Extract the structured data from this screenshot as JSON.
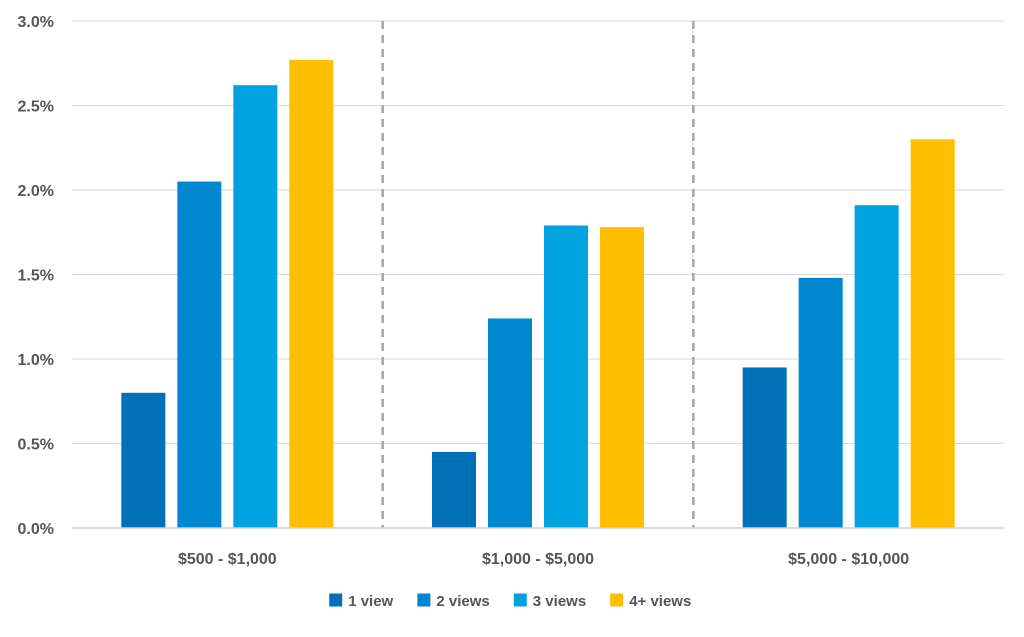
{
  "chart_data": {
    "type": "bar",
    "title": "",
    "xlabel": "",
    "ylabel": "",
    "categories": [
      "$500 - $1,000",
      "$1,000 - $5,000",
      "$5,000 - $10,000"
    ],
    "series": [
      {
        "name": "1 view",
        "color": "#0070b8",
        "values": [
          0.8,
          0.45,
          0.95
        ]
      },
      {
        "name": "2 views",
        "color": "#0087d0",
        "values": [
          2.05,
          1.24,
          1.48
        ]
      },
      {
        "name": "3 views",
        "color": "#00a3e0",
        "values": [
          2.62,
          1.79,
          1.91
        ]
      },
      {
        "name": "4+ views",
        "color": "#ffbf00",
        "values": [
          2.77,
          1.78,
          2.3
        ]
      }
    ],
    "ylim": [
      0,
      3.0
    ],
    "yticks": [
      0,
      0.5,
      1.0,
      1.5,
      2.0,
      2.5,
      3.0
    ],
    "ytick_labels": [
      "0.0%",
      "0.5%",
      "1.0%",
      "1.5%",
      "2.0%",
      "2.5%",
      "3.0%"
    ],
    "grid": true,
    "group_separators": "dashed",
    "legend_position": "bottom-center"
  }
}
